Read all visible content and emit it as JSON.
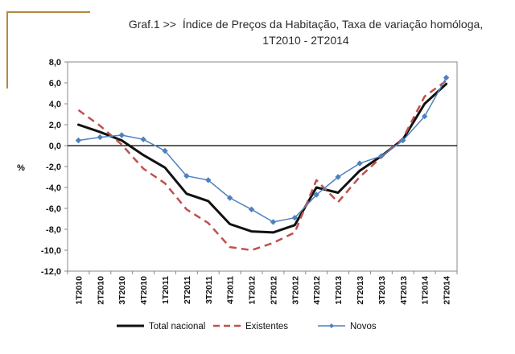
{
  "chart_data": {
    "type": "line",
    "title_prefix": "Graf.1  >>",
    "title": "Índice de Preços da Habitação, Taxa de variação homóloga,",
    "subtitle": "1T2010 - 2T2014",
    "xlabel": "",
    "ylabel": "%",
    "ylim": [
      -12,
      8
    ],
    "yticks": [
      "8,0",
      "6,0",
      "4,0",
      "2,0",
      "0,0",
      "-2,0",
      "-4,0",
      "-6,0",
      "-8,0",
      "-10,0",
      "-12,0"
    ],
    "ytick_values": [
      8,
      6,
      4,
      2,
      0,
      -2,
      -4,
      -6,
      -8,
      -10,
      -12
    ],
    "categories": [
      "1T2010",
      "2T2010",
      "3T2010",
      "4T2010",
      "1T2011",
      "2T2011",
      "3T2011",
      "4T2011",
      "1T2012",
      "2T2012",
      "3T2012",
      "4T2012",
      "1T2013",
      "2T2013",
      "3T2013",
      "4T2013",
      "1T2014",
      "2T2014"
    ],
    "grid": false,
    "legend_position": "bottom",
    "series": [
      {
        "name": "Total nacional",
        "color": "#111111",
        "style": "solid",
        "values": [
          2.0,
          1.3,
          0.5,
          -0.9,
          -2.1,
          -4.6,
          -5.3,
          -7.5,
          -8.2,
          -8.3,
          -7.6,
          -4.0,
          -4.5,
          -2.4,
          -1.0,
          0.6,
          4.0,
          5.9
        ]
      },
      {
        "name": "Existentes",
        "color": "#c0504d",
        "style": "dashed",
        "values": [
          3.4,
          1.9,
          0.1,
          -2.2,
          -3.6,
          -6.1,
          -7.4,
          -9.7,
          -10.0,
          -9.3,
          -8.3,
          -3.3,
          -5.4,
          -3.0,
          -1.1,
          0.7,
          4.7,
          6.2
        ]
      },
      {
        "name": "Novos",
        "color": "#4f81bd",
        "style": "marker",
        "values": [
          0.5,
          0.8,
          1.0,
          0.6,
          -0.5,
          -2.9,
          -3.3,
          -5.0,
          -6.1,
          -7.3,
          -6.9,
          -4.7,
          -3.0,
          -1.7,
          -1.0,
          0.5,
          2.8,
          6.5
        ]
      }
    ]
  }
}
